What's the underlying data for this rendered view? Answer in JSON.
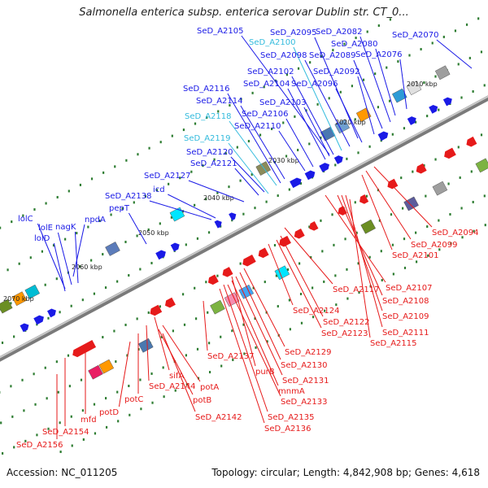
{
  "title": "Salmonella enterica subsp. enterica serovar Dublin str. CT_0...",
  "footer": {
    "accession": "Accession: NC_011205",
    "summary": "Topology: circular; Length: 4,842,908 bp; Genes: 4,618"
  },
  "colors": {
    "forward_strand": "#1a1ae6",
    "reverse_strand": "#e61a1a",
    "highlight_label": "#33bbdd",
    "backbone": "#909090"
  },
  "kbp_ticks": [
    "2010 kbp",
    "2020 kbp",
    "2030 kbp",
    "2040 kbp",
    "2050 kbp",
    "2060 kbp",
    "2070 kbp"
  ],
  "labels": [
    {
      "text": "SeD_A2070",
      "color": "blue"
    },
    {
      "text": "SeD_A2105",
      "color": "blue"
    },
    {
      "text": "SeD_A2100",
      "color": "cyan"
    },
    {
      "text": "SeD_A2095",
      "color": "blue"
    },
    {
      "text": "SeD_A2082",
      "color": "blue"
    },
    {
      "text": "SeD_A2080",
      "color": "blue"
    },
    {
      "text": "SeD_A2098",
      "color": "blue"
    },
    {
      "text": "SeD_A2089",
      "color": "blue"
    },
    {
      "text": "SeD_A2076",
      "color": "blue"
    },
    {
      "text": "SeD_A2102",
      "color": "blue"
    },
    {
      "text": "SeD_A2092",
      "color": "blue"
    },
    {
      "text": "SeD_A2104",
      "color": "blue"
    },
    {
      "text": "SeD_A2096",
      "color": "blue"
    },
    {
      "text": "SeD_A2116",
      "color": "blue"
    },
    {
      "text": "SeD_A2114",
      "color": "blue"
    },
    {
      "text": "SeD_A2103",
      "color": "blue"
    },
    {
      "text": "SeD_A2106",
      "color": "blue"
    },
    {
      "text": "SeD_A2118",
      "color": "cyan"
    },
    {
      "text": "SeD_A2110",
      "color": "blue"
    },
    {
      "text": "SeD_A2119",
      "color": "cyan"
    },
    {
      "text": "SeD_A2120",
      "color": "blue"
    },
    {
      "text": "SeD_A2121",
      "color": "blue"
    },
    {
      "text": "SeD_A2127",
      "color": "blue"
    },
    {
      "text": "icd",
      "color": "blue"
    },
    {
      "text": "SeD_A2138",
      "color": "blue"
    },
    {
      "text": "pepT",
      "color": "blue"
    },
    {
      "text": "npdA",
      "color": "blue"
    },
    {
      "text": "lolC",
      "color": "blue"
    },
    {
      "text": "lolE",
      "color": "blue"
    },
    {
      "text": "nagK",
      "color": "blue"
    },
    {
      "text": "lolD",
      "color": "blue"
    },
    {
      "text": "SeD_A2094",
      "color": "red"
    },
    {
      "text": "SeD_A2099",
      "color": "red"
    },
    {
      "text": "SeD_A2101",
      "color": "red"
    },
    {
      "text": "SeD_A2107",
      "color": "red"
    },
    {
      "text": "SeD_A2117",
      "color": "red"
    },
    {
      "text": "SeD_A2108",
      "color": "red"
    },
    {
      "text": "SeD_A2109",
      "color": "red"
    },
    {
      "text": "SeD_A2124",
      "color": "red"
    },
    {
      "text": "SeD_A2122",
      "color": "red"
    },
    {
      "text": "SeD_A2111",
      "color": "red"
    },
    {
      "text": "SeD_A2123",
      "color": "red"
    },
    {
      "text": "SeD_A2115",
      "color": "red"
    },
    {
      "text": "SeD_A2129",
      "color": "red"
    },
    {
      "text": "SeD_A2137",
      "color": "red"
    },
    {
      "text": "SeD_A2130",
      "color": "red"
    },
    {
      "text": "purB",
      "color": "red"
    },
    {
      "text": "sifA",
      "color": "red"
    },
    {
      "text": "SeD_A2131",
      "color": "red"
    },
    {
      "text": "SeD_A2144",
      "color": "red"
    },
    {
      "text": "potA",
      "color": "red"
    },
    {
      "text": "mnmA",
      "color": "red"
    },
    {
      "text": "potC",
      "color": "red"
    },
    {
      "text": "potB",
      "color": "red"
    },
    {
      "text": "SeD_A2133",
      "color": "red"
    },
    {
      "text": "potD",
      "color": "red"
    },
    {
      "text": "SeD_A2142",
      "color": "red"
    },
    {
      "text": "SeD_A2135",
      "color": "red"
    },
    {
      "text": "mfd",
      "color": "red"
    },
    {
      "text": "SeD_A2136",
      "color": "red"
    },
    {
      "text": "SeD_A2154",
      "color": "red"
    },
    {
      "text": "SeD_A2156",
      "color": "red"
    }
  ]
}
